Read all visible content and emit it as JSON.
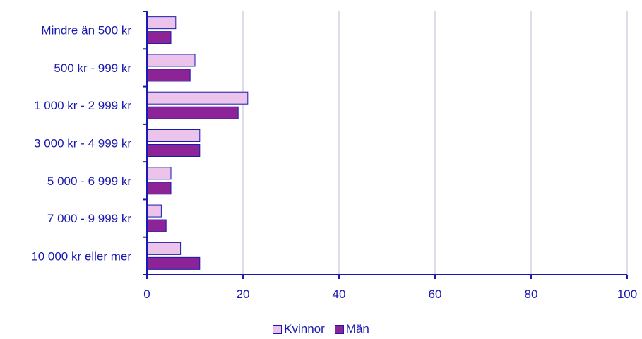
{
  "chart_data": {
    "type": "bar",
    "orientation": "horizontal",
    "categories": [
      "Mindre än 500 kr",
      "500 kr - 999 kr",
      "1 000 kr - 2 999 kr",
      "3 000 kr - 4 999 kr",
      "5 000 - 6 999 kr",
      "7 000 - 9 999 kr",
      "10 000 kr eller mer"
    ],
    "series": [
      {
        "name": "Kvinnor",
        "color": "#ebc3eb",
        "values": [
          6,
          10,
          21,
          11,
          5,
          3,
          7
        ]
      },
      {
        "name": "Män",
        "color": "#8c2396",
        "values": [
          5,
          9,
          19,
          11,
          5,
          4,
          11
        ]
      }
    ],
    "xlim": [
      0,
      100
    ],
    "xticks": [
      0,
      20,
      40,
      60,
      80,
      100
    ],
    "grid": true,
    "legend_position": "bottom",
    "axis_color": "#1a1ab0",
    "grid_color": "#d0d0ec"
  }
}
